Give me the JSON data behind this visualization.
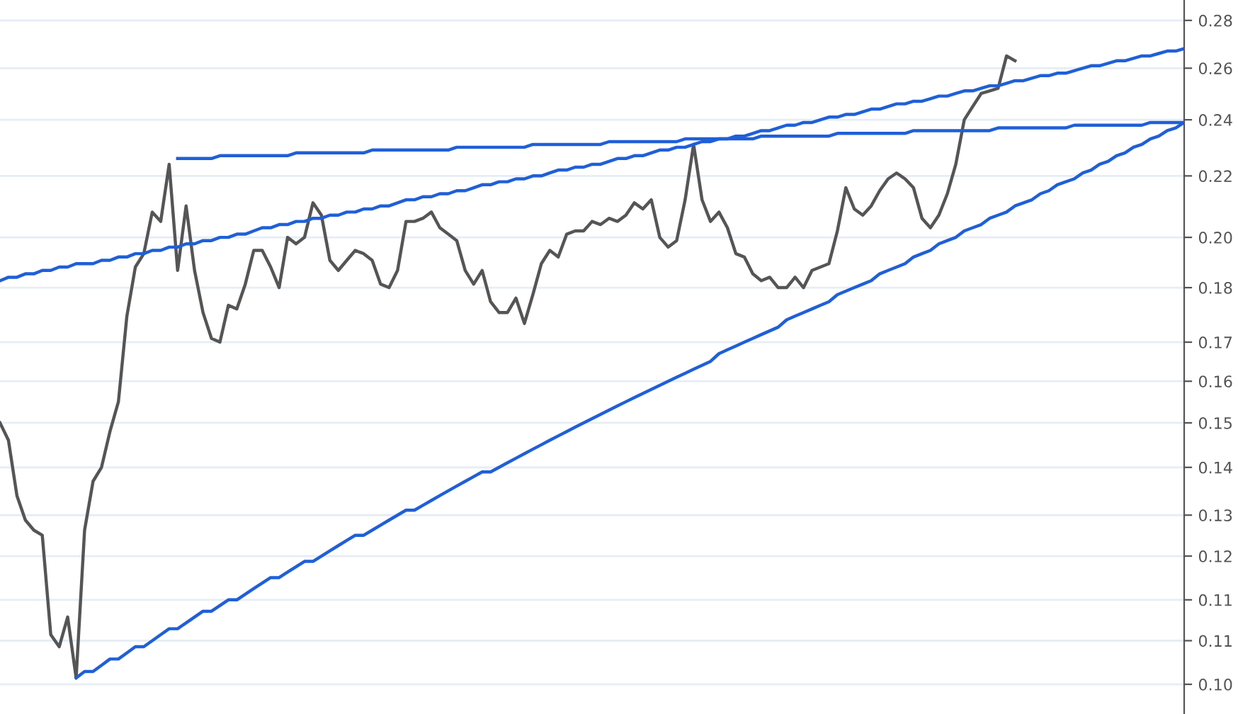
{
  "chart_data": {
    "type": "line",
    "log": "y",
    "grid": "y",
    "tick_labels": "y",
    "categories": [
      null,
      null,
      null,
      null,
      null,
      null,
      null,
      null,
      null,
      null,
      null,
      null,
      null,
      null,
      null,
      null,
      null,
      null,
      null,
      null,
      null,
      null,
      null,
      null,
      null,
      null,
      null,
      null,
      null,
      null,
      null,
      null,
      null,
      null,
      null,
      null,
      null,
      null,
      null,
      null,
      null,
      null,
      null,
      null,
      null,
      null,
      null,
      null,
      null,
      null,
      null,
      null,
      null,
      null,
      null,
      null,
      null,
      null,
      null,
      null,
      null,
      null,
      null,
      null,
      null,
      null,
      null,
      null,
      null,
      null,
      null,
      null,
      null,
      null,
      null,
      null,
      null,
      null,
      null,
      null,
      null,
      null,
      null,
      null,
      null,
      null,
      null,
      null,
      null,
      null,
      null,
      null,
      null,
      null,
      null,
      null,
      null,
      null,
      null,
      null,
      null,
      null,
      null,
      null,
      null,
      null,
      null,
      null,
      null,
      null,
      null,
      null,
      null,
      null,
      null,
      null,
      null,
      null,
      null,
      null,
      null,
      null,
      null,
      null,
      null,
      null,
      null,
      null,
      null,
      null,
      null,
      null,
      null,
      null,
      null,
      null,
      null,
      null,
      null,
      null,
      null
    ],
    "ylim": [
      0.0955,
      0.289
    ],
    "yticks": [
      {
        "value": 0.1,
        "label": "0.10"
      },
      {
        "value": 0.107,
        "label": "0.11"
      },
      {
        "value": 0.114,
        "label": "0.11"
      },
      {
        "value": 0.122,
        "label": "0.12"
      },
      {
        "value": 0.13,
        "label": "0.13"
      },
      {
        "value": 0.14,
        "label": "0.14"
      },
      {
        "value": 0.15,
        "label": "0.15"
      },
      {
        "value": 0.16,
        "label": "0.16"
      },
      {
        "value": 0.17,
        "label": "0.17"
      },
      {
        "value": 0.185,
        "label": "0.18"
      },
      {
        "value": 0.2,
        "label": "0.20"
      },
      {
        "value": 0.22,
        "label": "0.22"
      },
      {
        "value": 0.24,
        "label": "0.24"
      },
      {
        "value": 0.26,
        "label": "0.26"
      },
      {
        "value": 0.28,
        "label": "0.28"
      }
    ],
    "series": [
      {
        "color": "#555555",
        "values": [
          0.15,
          0.146,
          0.134,
          0.129,
          0.127,
          0.126,
          0.108,
          0.106,
          0.111,
          0.101,
          0.127,
          0.137,
          0.14,
          0.148,
          0.155,
          0.177,
          0.191,
          0.195,
          0.208,
          0.205,
          0.224,
          0.19,
          0.21,
          0.19,
          0.178,
          0.171,
          0.17,
          0.18,
          0.179,
          0.186,
          0.196,
          0.196,
          0.191,
          0.185,
          0.2,
          0.198,
          0.2,
          0.211,
          0.207,
          0.193,
          0.19,
          0.193,
          0.196,
          0.195,
          0.193,
          0.186,
          0.185,
          0.19,
          0.205,
          0.205,
          0.206,
          0.208,
          0.203,
          0.201,
          0.199,
          0.19,
          0.186,
          0.19,
          0.181,
          0.178,
          0.178,
          0.182,
          0.175,
          0.183,
          0.192,
          0.196,
          0.194,
          0.201,
          0.202,
          0.202,
          0.205,
          0.204,
          0.206,
          0.205,
          0.207,
          0.211,
          0.209,
          0.212,
          0.2,
          0.197,
          0.199,
          0.212,
          0.231,
          0.212,
          0.205,
          0.208,
          0.203,
          0.195,
          0.194,
          0.189,
          0.187,
          0.188,
          0.185,
          0.185,
          0.188,
          0.185,
          0.19,
          0.191,
          0.192,
          0.202,
          0.216,
          0.209,
          0.207,
          0.21,
          0.215,
          0.219,
          0.221,
          0.219,
          0.216,
          0.206,
          0.203,
          0.207,
          0.214,
          0.224,
          0.24,
          0.245,
          0.25,
          0.251,
          0.252,
          0.265,
          0.263,
          null,
          null,
          null,
          null,
          null,
          null,
          null,
          null,
          null,
          null,
          null,
          null,
          null,
          null,
          null,
          null,
          null,
          null,
          null,
          null
        ]
      },
      {
        "color": "#1f5fd8",
        "values": [
          null,
          null,
          null,
          null,
          null,
          null,
          null,
          null,
          null,
          null,
          null,
          null,
          null,
          null,
          null,
          null,
          null,
          null,
          null,
          null,
          null,
          0.226,
          0.226,
          0.226,
          0.226,
          0.226,
          0.227,
          0.227,
          0.227,
          0.227,
          0.227,
          0.227,
          0.227,
          0.227,
          0.227,
          0.228,
          0.228,
          0.228,
          0.228,
          0.228,
          0.228,
          0.228,
          0.228,
          0.228,
          0.229,
          0.229,
          0.229,
          0.229,
          0.229,
          0.229,
          0.229,
          0.229,
          0.229,
          0.229,
          0.23,
          0.23,
          0.23,
          0.23,
          0.23,
          0.23,
          0.23,
          0.23,
          0.23,
          0.231,
          0.231,
          0.231,
          0.231,
          0.231,
          0.231,
          0.231,
          0.231,
          0.231,
          0.232,
          0.232,
          0.232,
          0.232,
          0.232,
          0.232,
          0.232,
          0.232,
          0.232,
          0.233,
          0.233,
          0.233,
          0.233,
          0.233,
          0.233,
          0.233,
          0.233,
          0.233,
          0.234,
          0.234,
          0.234,
          0.234,
          0.234,
          0.234,
          0.234,
          0.234,
          0.234,
          0.235,
          0.235,
          0.235,
          0.235,
          0.235,
          0.235,
          0.235,
          0.235,
          0.235,
          0.236,
          0.236,
          0.236,
          0.236,
          0.236,
          0.236,
          0.236,
          0.236,
          0.236,
          0.236,
          0.237,
          0.237,
          0.237,
          0.237,
          0.237,
          0.237,
          0.237,
          0.237,
          0.237,
          0.238,
          0.238,
          0.238,
          0.238,
          0.238,
          0.238,
          0.238,
          0.238,
          0.238,
          0.239,
          0.239,
          0.239,
          0.239,
          0.239
        ]
      },
      {
        "color": "#1f5fd8",
        "values": [
          0.187,
          0.188,
          0.188,
          0.189,
          0.189,
          0.19,
          0.19,
          0.191,
          0.191,
          0.192,
          0.192,
          0.192,
          0.193,
          0.193,
          0.194,
          0.194,
          0.195,
          0.195,
          0.196,
          0.196,
          0.197,
          0.197,
          0.198,
          0.198,
          0.199,
          0.199,
          0.2,
          0.2,
          0.201,
          0.201,
          0.202,
          0.203,
          0.203,
          0.204,
          0.204,
          0.205,
          0.205,
          0.206,
          0.206,
          0.207,
          0.207,
          0.208,
          0.208,
          0.209,
          0.209,
          0.21,
          0.21,
          0.211,
          0.212,
          0.212,
          0.213,
          0.213,
          0.214,
          0.214,
          0.215,
          0.215,
          0.216,
          0.217,
          0.217,
          0.218,
          0.218,
          0.219,
          0.219,
          0.22,
          0.22,
          0.221,
          0.222,
          0.222,
          0.223,
          0.223,
          0.224,
          0.224,
          0.225,
          0.226,
          0.226,
          0.227,
          0.227,
          0.228,
          0.229,
          0.229,
          0.23,
          0.23,
          0.231,
          0.232,
          0.232,
          0.233,
          0.233,
          0.234,
          0.234,
          0.235,
          0.236,
          0.236,
          0.237,
          0.238,
          0.238,
          0.239,
          0.239,
          0.24,
          0.241,
          0.241,
          0.242,
          0.242,
          0.243,
          0.244,
          0.244,
          0.245,
          0.246,
          0.246,
          0.247,
          0.247,
          0.248,
          0.249,
          0.249,
          0.25,
          0.251,
          0.251,
          0.252,
          0.253,
          0.253,
          0.254,
          0.255,
          0.255,
          0.256,
          0.257,
          0.257,
          0.258,
          0.258,
          0.259,
          0.26,
          0.261,
          0.261,
          0.262,
          0.263,
          0.263,
          0.264,
          0.265,
          0.265,
          0.266,
          0.267,
          0.267,
          0.268
        ]
      },
      {
        "color": "#1f5fd8",
        "values": [
          null,
          null,
          null,
          null,
          null,
          null,
          null,
          null,
          null,
          0.101,
          0.102,
          0.102,
          0.103,
          0.104,
          0.104,
          0.105,
          0.106,
          0.106,
          0.107,
          0.108,
          0.109,
          0.109,
          0.11,
          0.111,
          0.112,
          0.112,
          0.113,
          0.114,
          0.114,
          0.115,
          0.116,
          0.117,
          0.118,
          0.118,
          0.119,
          0.12,
          0.121,
          0.121,
          0.122,
          0.123,
          0.124,
          0.125,
          0.126,
          0.126,
          0.127,
          0.128,
          0.129,
          0.13,
          0.131,
          0.131,
          0.132,
          0.133,
          0.134,
          0.135,
          0.136,
          0.137,
          0.138,
          0.139,
          0.139,
          0.14,
          0.141,
          0.142,
          0.143,
          0.144,
          0.145,
          0.146,
          0.147,
          0.148,
          0.149,
          0.15,
          0.151,
          0.152,
          0.153,
          0.154,
          0.155,
          0.156,
          0.157,
          0.158,
          0.159,
          0.16,
          0.161,
          0.162,
          0.163,
          0.164,
          0.165,
          0.167,
          0.168,
          0.169,
          0.17,
          0.171,
          0.172,
          0.173,
          0.174,
          0.176,
          0.177,
          0.178,
          0.179,
          0.18,
          0.181,
          0.183,
          0.184,
          0.185,
          0.186,
          0.187,
          0.189,
          0.19,
          0.191,
          0.192,
          0.194,
          0.195,
          0.196,
          0.198,
          0.199,
          0.2,
          0.202,
          0.203,
          0.204,
          0.206,
          0.207,
          0.208,
          0.21,
          0.211,
          0.212,
          0.214,
          0.215,
          0.217,
          0.218,
          0.219,
          0.221,
          0.222,
          0.224,
          0.225,
          0.227,
          0.228,
          0.23,
          0.231,
          0.233,
          0.234,
          0.236,
          0.237,
          0.239
        ]
      }
    ]
  }
}
